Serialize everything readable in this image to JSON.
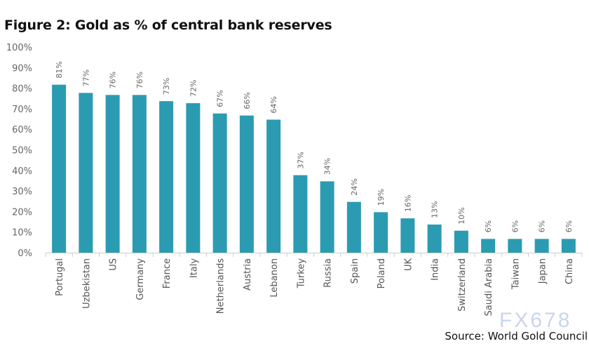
{
  "chart_data": {
    "type": "bar",
    "title": "Figure 2: Gold as % of central bank reserves",
    "categories": [
      "Portugal",
      "Uzbekistan",
      "US",
      "Germany",
      "France",
      "Italy",
      "Netherlands",
      "Austria",
      "Lebanon",
      "Turkey",
      "Russia",
      "Spain",
      "Poland",
      "UK",
      "India",
      "Switzerland",
      "Saudi Arabia",
      "Taiwan",
      "Japan",
      "China"
    ],
    "values": [
      81,
      77,
      76,
      76,
      73,
      72,
      67,
      66,
      64,
      37,
      34,
      24,
      19,
      16,
      13,
      10,
      6,
      6,
      6,
      6
    ],
    "data_labels": [
      "81%",
      "77%",
      "76%",
      "76%",
      "73%",
      "72%",
      "67%",
      "66%",
      "64%",
      "37%",
      "34%",
      "24%",
      "19%",
      "16%",
      "13%",
      "10%",
      "6%",
      "6%",
      "6%",
      "6%"
    ],
    "yticks": [
      "0%",
      "10%",
      "20%",
      "30%",
      "40%",
      "50%",
      "60%",
      "70%",
      "80%",
      "90%",
      "100%"
    ],
    "ylim": [
      0,
      100
    ],
    "xlabel": "",
    "ylabel": "",
    "grid": false,
    "bar_color": "#2b9bb2"
  },
  "source": "Source: World Gold Council",
  "watermark": "FX678"
}
